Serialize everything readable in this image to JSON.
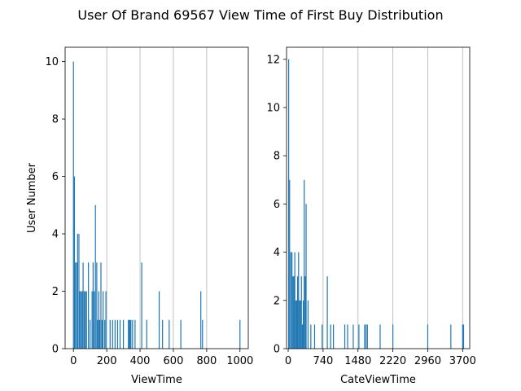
{
  "title": "User Of Brand 69567 View Time of First Buy Distribution",
  "bar_color": "#1f77b4",
  "grid": "vertical, x-axis only",
  "chart_data": [
    {
      "type": "bar",
      "xlabel": "ViewTime",
      "ylabel": "User Number",
      "xlim": [
        -50,
        1050
      ],
      "ylim": [
        0,
        10.5
      ],
      "xticks": [
        0,
        200,
        400,
        600,
        800,
        1000
      ],
      "yticks": [
        0,
        2,
        4,
        6,
        8,
        10
      ],
      "grid_x": [
        200,
        400,
        600,
        800
      ],
      "bar_width": 4,
      "x": [
        0,
        6,
        12,
        20,
        25,
        33,
        38,
        45,
        52,
        58,
        65,
        72,
        78,
        90,
        100,
        112,
        118,
        125,
        132,
        140,
        146,
        152,
        158,
        165,
        172,
        178,
        188,
        195,
        220,
        235,
        250,
        265,
        280,
        300,
        330,
        335,
        340,
        345,
        355,
        370,
        410,
        440,
        515,
        535,
        575,
        645,
        765,
        775,
        1000
      ],
      "values": [
        10,
        6,
        3,
        3,
        4,
        4,
        2,
        2,
        2,
        3,
        2,
        2,
        2,
        3,
        1,
        2,
        3,
        2,
        5,
        3,
        1,
        2,
        1,
        3,
        1,
        2,
        1,
        2,
        1,
        1,
        1,
        1,
        1,
        1,
        1,
        1,
        1,
        1,
        1,
        1,
        3,
        1,
        2,
        1,
        1,
        1,
        2,
        1,
        1
      ]
    },
    {
      "type": "bar",
      "xlabel": "CateViewTime",
      "ylabel": "",
      "xlim": [
        -35,
        3850
      ],
      "ylim": [
        0,
        12.5
      ],
      "xticks": [
        0,
        740,
        1480,
        2220,
        2960,
        3700
      ],
      "yticks": [
        0,
        2,
        4,
        6,
        8,
        10,
        12
      ],
      "grid_x": [
        740,
        1480,
        2220,
        2960,
        3700
      ],
      "bar_width": 18,
      "x": [
        10,
        30,
        55,
        80,
        100,
        120,
        140,
        160,
        180,
        200,
        220,
        240,
        260,
        280,
        300,
        320,
        340,
        360,
        380,
        420,
        480,
        560,
        720,
        830,
        900,
        960,
        1200,
        1260,
        1380,
        1500,
        1620,
        1650,
        1680,
        1950,
        2220,
        2960,
        3450,
        3700,
        3720
      ],
      "values": [
        12,
        7,
        4,
        4,
        3,
        3,
        4,
        2,
        2,
        3,
        4,
        2,
        2,
        3,
        1,
        2,
        7,
        3,
        6,
        2,
        1,
        1,
        1,
        3,
        1,
        1,
        1,
        1,
        1,
        1,
        1,
        1,
        1,
        1,
        1,
        1,
        1,
        1,
        1
      ]
    }
  ]
}
